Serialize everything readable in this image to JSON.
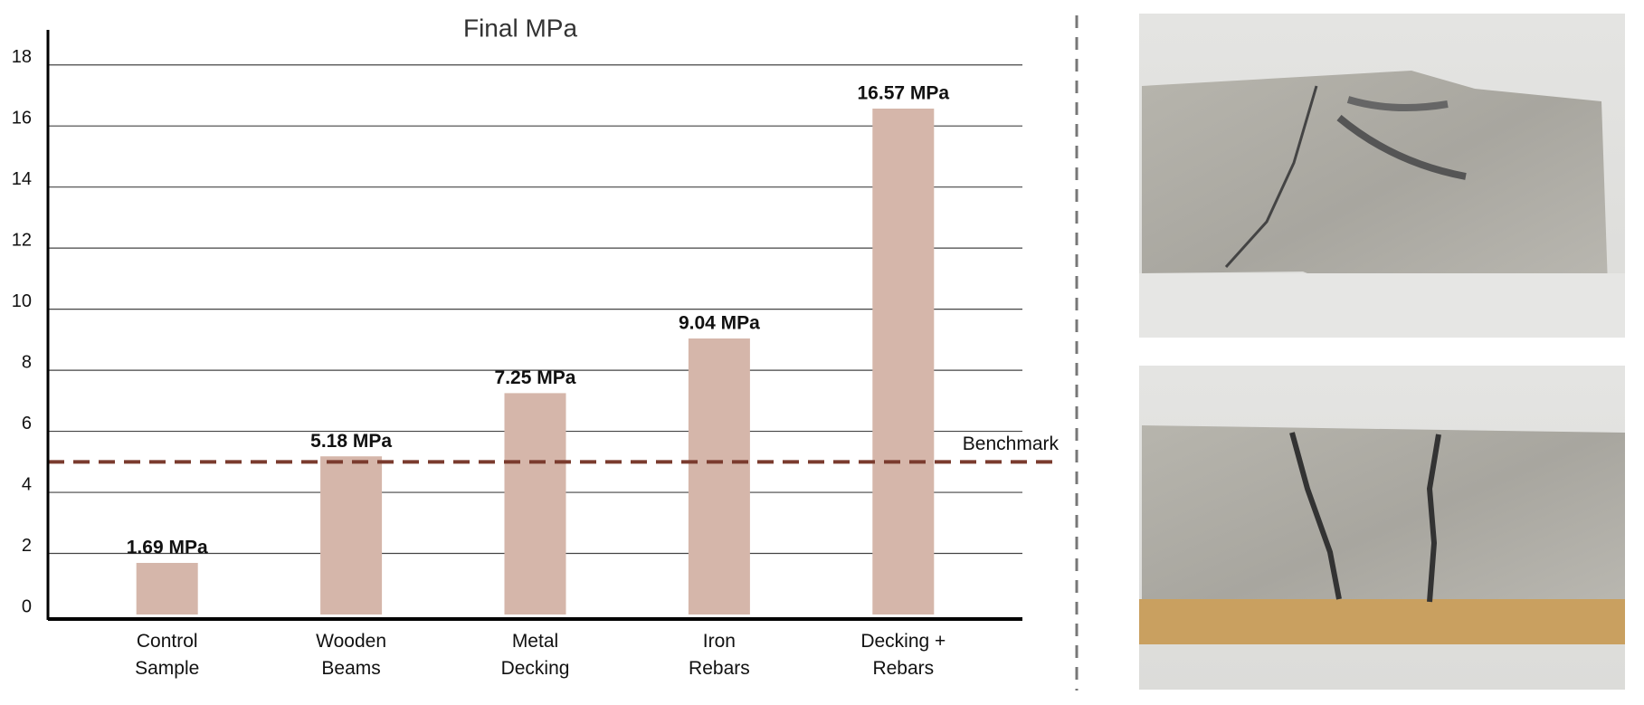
{
  "chart_data": {
    "type": "bar",
    "title": "Final MPa",
    "categories": [
      "Control Sample",
      "Wooden Beams",
      "Metal Decking",
      "Iron Rebars",
      "Decking + Rebars"
    ],
    "values": [
      1.69,
      5.18,
      7.25,
      9.04,
      16.57
    ],
    "value_labels": [
      "1.69 MPa",
      "5.18 MPa",
      "7.25 MPa",
      "9.04 MPa",
      "16.57 MPa"
    ],
    "color": "#d5b6aa",
    "ylim": [
      0,
      19
    ],
    "yticks": [
      0,
      2,
      4,
      6,
      8,
      10,
      12,
      14,
      16,
      18
    ],
    "grid": true,
    "benchmark": {
      "value": 5,
      "label": "Benchmark",
      "color": "#7a3b2e"
    }
  }
}
